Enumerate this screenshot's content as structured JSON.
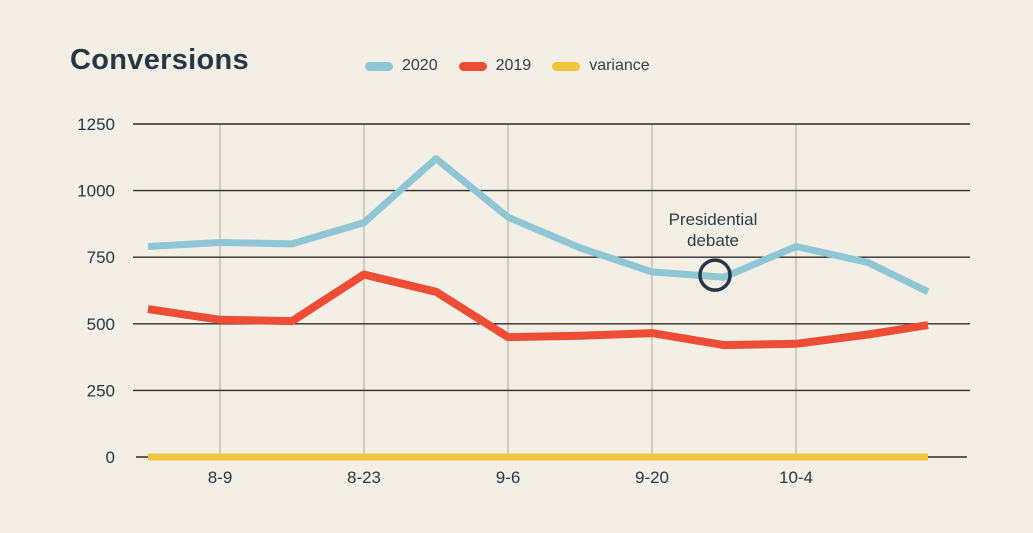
{
  "colors": {
    "background": "#f3efe5",
    "ink": "#263645",
    "grid_horizontal": "#2c2c28",
    "grid_vertical": "#b9b5ab",
    "series_2020": "#8fc6d3",
    "series_2019": "#ee4c34",
    "series_variance": "#f2c33e",
    "annotation_circle": "#263645"
  },
  "legend": {
    "items": [
      {
        "label": "2020",
        "color": "#8fc6d3"
      },
      {
        "label": "2019",
        "color": "#ee4c34"
      },
      {
        "label": "variance",
        "color": "#f2c33e"
      }
    ]
  },
  "chart_data": {
    "type": "line",
    "title": "Conversions",
    "xlabel": "",
    "ylabel": "",
    "ylim": [
      0,
      1250
    ],
    "y_ticks": [
      0,
      250,
      500,
      750,
      1000,
      1250
    ],
    "x_ticklabels": [
      "8-9",
      "8-23",
      "9-6",
      "9-20",
      "10-4"
    ],
    "x_tick_point_indices": [
      1,
      3,
      5,
      7,
      9
    ],
    "grid": "both",
    "legend_position": "top",
    "series": [
      {
        "name": "2020",
        "color": "#8fc6d3",
        "values": [
          790,
          805,
          800,
          880,
          1120,
          900,
          785,
          695,
          675,
          790,
          730,
          620
        ]
      },
      {
        "name": "2019",
        "color": "#ee4c34",
        "values": [
          555,
          515,
          510,
          685,
          620,
          450,
          455,
          465,
          420,
          425,
          460,
          495
        ]
      },
      {
        "name": "variance",
        "color": "#f2c33e",
        "values": [
          0,
          0,
          0,
          0,
          0,
          0,
          0,
          0,
          0,
          0,
          0,
          0
        ]
      }
    ],
    "annotation": {
      "text": "Presidential debate",
      "lines": [
        "Presidential",
        "debate"
      ],
      "point_index": 8,
      "series": "2020"
    }
  }
}
